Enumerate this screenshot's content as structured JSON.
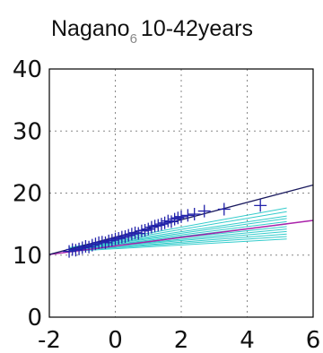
{
  "chart_data": {
    "type": "scatter",
    "title_main": "Nagano",
    "title_sub": "6",
    "title_rest": "10-42years",
    "xlabel": "",
    "ylabel": "",
    "xlim": [
      -2,
      6
    ],
    "ylim": [
      0,
      40
    ],
    "xticks": [
      "-2",
      "0",
      "2",
      "4",
      "6"
    ],
    "yticks": [
      "0",
      "10",
      "20",
      "30",
      "40"
    ],
    "grid": true,
    "colors": {
      "points": "#2222aa",
      "fit_line": "#1a1a5e",
      "reference_line": "#aa22aa",
      "ensemble": "#33cccc"
    },
    "points": [
      [
        -1.4,
        10.6
      ],
      [
        -1.3,
        10.9
      ],
      [
        -1.2,
        10.8
      ],
      [
        -1.1,
        11.0
      ],
      [
        -1.0,
        11.2
      ],
      [
        -0.9,
        11.4
      ],
      [
        -0.8,
        11.3
      ],
      [
        -0.7,
        11.6
      ],
      [
        -0.6,
        11.8
      ],
      [
        -0.5,
        12.0
      ],
      [
        -0.4,
        12.1
      ],
      [
        -0.3,
        12.0
      ],
      [
        -0.2,
        12.3
      ],
      [
        -0.1,
        12.4
      ],
      [
        0.0,
        12.6
      ],
      [
        0.1,
        12.7
      ],
      [
        0.2,
        12.9
      ],
      [
        0.3,
        13.0
      ],
      [
        0.4,
        13.2
      ],
      [
        0.5,
        13.4
      ],
      [
        0.6,
        13.6
      ],
      [
        0.7,
        13.5
      ],
      [
        0.8,
        13.9
      ],
      [
        0.9,
        14.0
      ],
      [
        1.0,
        14.2
      ],
      [
        1.1,
        14.5
      ],
      [
        1.2,
        14.7
      ],
      [
        1.3,
        14.8
      ],
      [
        1.4,
        15.0
      ],
      [
        1.5,
        15.2
      ],
      [
        1.6,
        15.5
      ],
      [
        1.7,
        15.4
      ],
      [
        1.8,
        15.8
      ],
      [
        1.9,
        16.0
      ],
      [
        2.0,
        16.2
      ],
      [
        2.2,
        16.4
      ],
      [
        2.4,
        16.6
      ],
      [
        2.7,
        17.1
      ],
      [
        3.3,
        17.4
      ],
      [
        4.4,
        18.0
      ]
    ],
    "fit_line": [
      [
        -2,
        10.1
      ],
      [
        6,
        21.3
      ]
    ],
    "reference_line": [
      [
        -2,
        10.1
      ],
      [
        6,
        15.6
      ]
    ],
    "ensemble_lines": [
      [
        [
          -1.4,
          10.6
        ],
        [
          5.2,
          12.6
        ]
      ],
      [
        [
          -1.4,
          10.7
        ],
        [
          5.2,
          13.0
        ]
      ],
      [
        [
          -1.4,
          10.7
        ],
        [
          5.2,
          13.4
        ]
      ],
      [
        [
          -1.4,
          10.8
        ],
        [
          5.2,
          13.8
        ]
      ],
      [
        [
          -1.4,
          10.8
        ],
        [
          5.2,
          14.2
        ]
      ],
      [
        [
          -1.4,
          10.9
        ],
        [
          5.2,
          14.6
        ]
      ],
      [
        [
          -1.4,
          10.9
        ],
        [
          5.2,
          15.0
        ]
      ],
      [
        [
          -1.4,
          11.0
        ],
        [
          5.2,
          15.4
        ]
      ],
      [
        [
          -1.4,
          11.0
        ],
        [
          5.2,
          15.9
        ]
      ],
      [
        [
          -1.4,
          11.1
        ],
        [
          5.2,
          16.3
        ]
      ],
      [
        [
          -1.4,
          11.1
        ],
        [
          5.2,
          17.0
        ]
      ],
      [
        [
          -1.4,
          11.2
        ],
        [
          5.2,
          17.6
        ]
      ]
    ]
  }
}
